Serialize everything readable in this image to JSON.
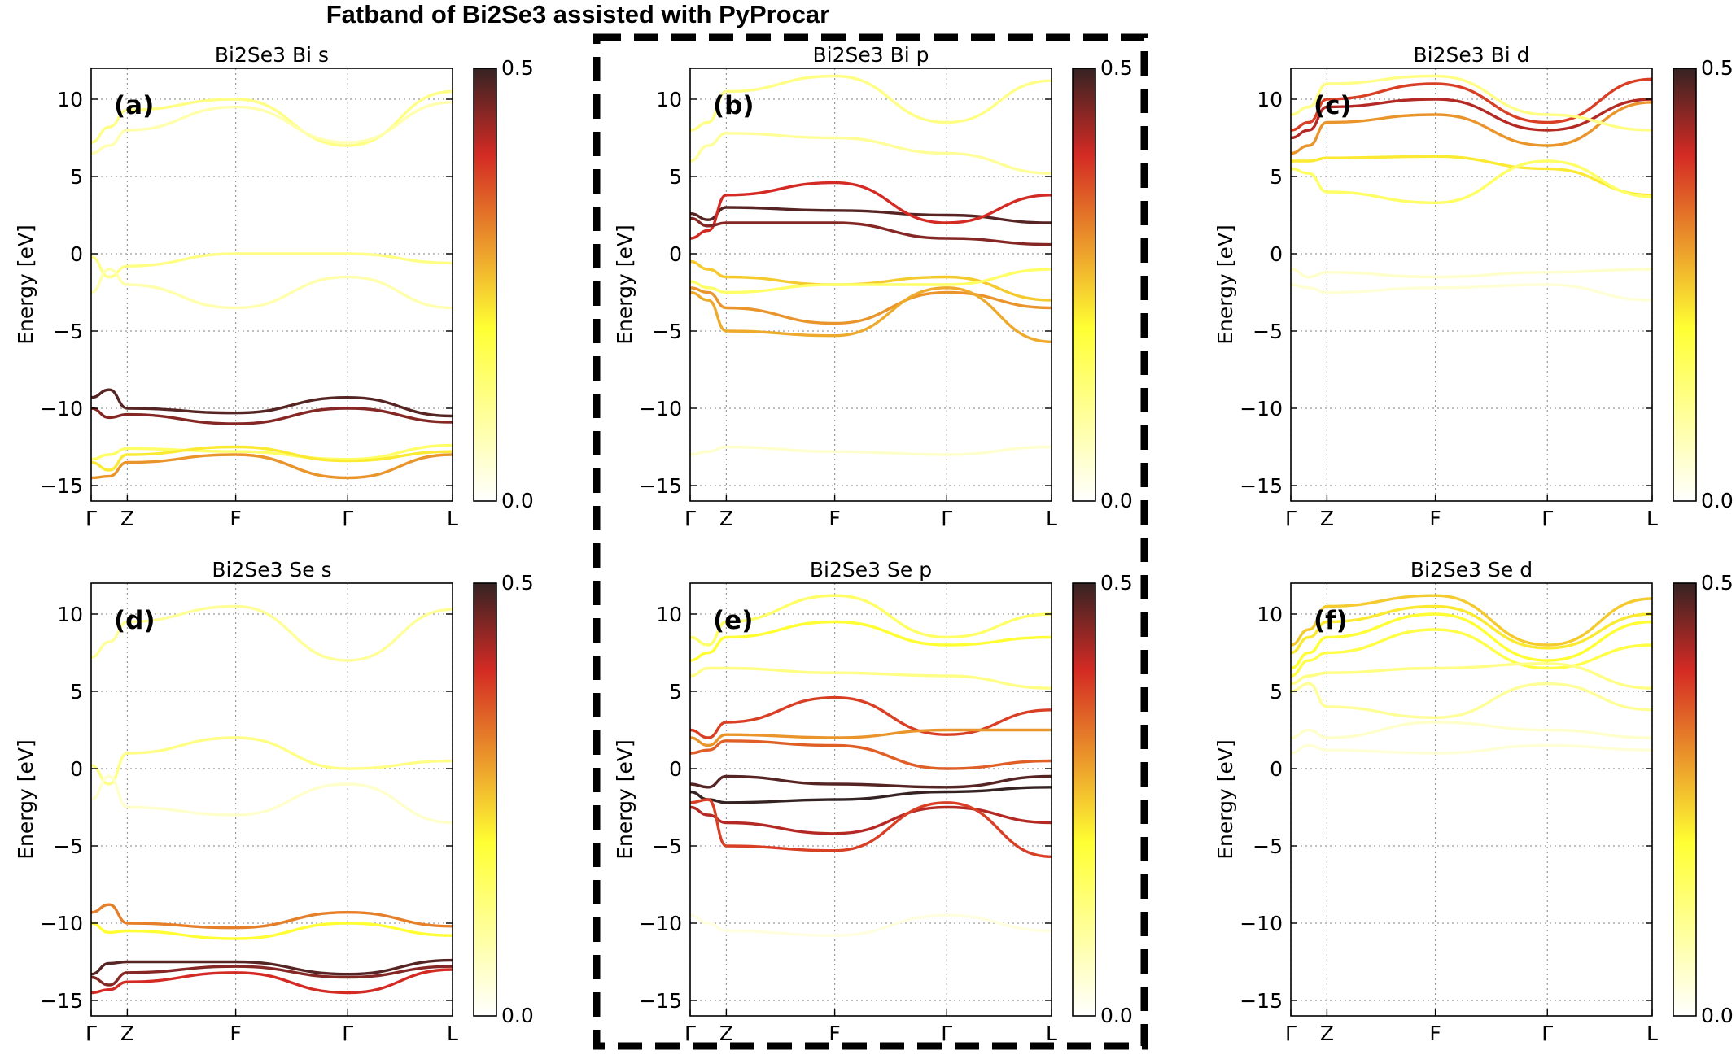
{
  "figure_title": "Fatband of Bi2Se3 assisted with PyProcar",
  "chart_data": {
    "type": "line",
    "ylabel": "Energy [eV]",
    "ylim": [
      -16,
      12
    ],
    "y_ticks": [
      10,
      5,
      0,
      -5,
      -10,
      -15
    ],
    "x_ticks": [
      {
        "label": "Γ",
        "pos": 0.0
      },
      {
        "label": "Z",
        "pos": 0.1
      },
      {
        "label": "F",
        "pos": 0.4
      },
      {
        "label": "Γ",
        "pos": 0.71
      },
      {
        "label": "L",
        "pos": 1.0
      }
    ],
    "colorbar": {
      "min": 0.0,
      "max": 0.5,
      "min_label": "0.0",
      "max_label": "0.5",
      "colormap": "hot_r"
    },
    "highlight_box_panels": [
      "b",
      "e"
    ],
    "panels": [
      {
        "id": "a",
        "label": "(a)",
        "title": "Bi2Se3 Bi s",
        "series": [
          {
            "y": [
              7.2,
              8.2,
              9.3,
              10.0,
              7.0,
              10.5
            ],
            "w": 0.12
          },
          {
            "y": [
              6.5,
              7.0,
              8.0,
              9.5,
              7.2,
              9.8
            ],
            "w": 0.08
          },
          {
            "y": [
              -0.2,
              -1.5,
              -0.8,
              0.0,
              0.0,
              -0.6
            ],
            "w": 0.12
          },
          {
            "y": [
              -2.5,
              -1.0,
              -2.0,
              -3.5,
              -1.5,
              -3.5
            ],
            "w": 0.08
          },
          {
            "y": [
              -9.3,
              -8.8,
              -10.0,
              -10.3,
              -9.3,
              -10.5
            ],
            "w": 0.48
          },
          {
            "y": [
              -10.0,
              -10.6,
              -10.4,
              -11.0,
              -10.0,
              -10.9
            ],
            "w": 0.45
          },
          {
            "y": [
              -13.3,
              -13.0,
              -12.6,
              -12.8,
              -13.3,
              -12.4
            ],
            "w": 0.15
          },
          {
            "y": [
              -13.5,
              -14.0,
              -13.0,
              -12.5,
              -13.4,
              -12.8
            ],
            "w": 0.22
          },
          {
            "y": [
              -14.5,
              -14.4,
              -13.5,
              -13.0,
              -14.5,
              -13.0
            ],
            "w": 0.3
          }
        ]
      },
      {
        "id": "b",
        "label": "(b)",
        "title": "Bi2Se3 Bi p",
        "series": [
          {
            "y": [
              8.0,
              8.5,
              10.5,
              11.5,
              8.5,
              11.2
            ],
            "w": 0.12
          },
          {
            "y": [
              6.0,
              7.0,
              7.8,
              7.5,
              6.5,
              5.2
            ],
            "w": 0.1
          },
          {
            "y": [
              2.6,
              2.2,
              3.0,
              2.8,
              2.5,
              2.0
            ],
            "w": 0.48
          },
          {
            "y": [
              1.0,
              1.5,
              3.8,
              4.6,
              2.0,
              3.8
            ],
            "w": 0.4
          },
          {
            "y": [
              2.3,
              1.8,
              2.0,
              2.0,
              1.0,
              0.6
            ],
            "w": 0.45
          },
          {
            "y": [
              -0.5,
              -1.0,
              -1.5,
              -2.0,
              -1.5,
              -3.0
            ],
            "w": 0.25
          },
          {
            "y": [
              -1.8,
              -2.2,
              -2.5,
              -2.0,
              -2.0,
              -1.0
            ],
            "w": 0.15
          },
          {
            "y": [
              -2.2,
              -2.5,
              -3.5,
              -4.5,
              -2.5,
              -3.5
            ],
            "w": 0.3
          },
          {
            "y": [
              -2.5,
              -3.0,
              -5.0,
              -5.3,
              -2.2,
              -5.7
            ],
            "w": 0.28
          },
          {
            "y": [
              -13.0,
              -12.8,
              -12.5,
              -12.8,
              -13.0,
              -12.5
            ],
            "w": 0.05
          }
        ]
      },
      {
        "id": "c",
        "label": "(c)",
        "title": "Bi2Se3 Bi d",
        "series": [
          {
            "y": [
              8.0,
              8.5,
              10.0,
              11.0,
              8.5,
              11.3
            ],
            "w": 0.38
          },
          {
            "y": [
              7.5,
              8.0,
              9.5,
              10.0,
              8.0,
              10.0
            ],
            "w": 0.42
          },
          {
            "y": [
              6.5,
              7.0,
              8.5,
              9.0,
              7.0,
              9.8
            ],
            "w": 0.3
          },
          {
            "y": [
              6.0,
              6.0,
              6.2,
              6.3,
              5.5,
              3.8
            ],
            "w": 0.22
          },
          {
            "y": [
              5.5,
              5.2,
              4.0,
              3.3,
              6.0,
              3.7
            ],
            "w": 0.15
          },
          {
            "y": [
              9.0,
              9.5,
              11.0,
              11.5,
              9.0,
              8.0
            ],
            "w": 0.12
          },
          {
            "y": [
              -1.0,
              -1.5,
              -1.2,
              -1.5,
              -1.2,
              -1.0
            ],
            "w": 0.05
          },
          {
            "y": [
              -2.0,
              -2.2,
              -2.5,
              -2.2,
              -2.0,
              -3.0
            ],
            "w": 0.04
          }
        ]
      },
      {
        "id": "d",
        "label": "(d)",
        "title": "Bi2Se3 Se s",
        "series": [
          {
            "y": [
              7.2,
              8.2,
              9.5,
              10.5,
              7.0,
              10.3
            ],
            "w": 0.1
          },
          {
            "y": [
              0.2,
              -1.0,
              1.0,
              2.0,
              0.0,
              0.5
            ],
            "w": 0.12
          },
          {
            "y": [
              -2.0,
              -0.5,
              -2.5,
              -3.0,
              -1.0,
              -3.5
            ],
            "w": 0.05
          },
          {
            "y": [
              -9.3,
              -8.8,
              -10.0,
              -10.3,
              -9.3,
              -10.2
            ],
            "w": 0.32
          },
          {
            "y": [
              -10.0,
              -10.6,
              -10.5,
              -11.0,
              -10.0,
              -10.8
            ],
            "w": 0.2
          },
          {
            "y": [
              -13.3,
              -12.6,
              -12.5,
              -12.5,
              -13.3,
              -12.4
            ],
            "w": 0.48
          },
          {
            "y": [
              -13.5,
              -14.0,
              -13.2,
              -12.8,
              -13.5,
              -12.8
            ],
            "w": 0.45
          },
          {
            "y": [
              -14.5,
              -14.3,
              -13.8,
              -13.2,
              -14.5,
              -13.0
            ],
            "w": 0.4
          }
        ]
      },
      {
        "id": "e",
        "label": "(e)",
        "title": "Bi2Se3 Se p",
        "series": [
          {
            "y": [
              8.5,
              8.0,
              9.5,
              11.2,
              8.5,
              10.0
            ],
            "w": 0.15
          },
          {
            "y": [
              7.0,
              7.5,
              8.5,
              9.5,
              8.0,
              8.5
            ],
            "w": 0.2
          },
          {
            "y": [
              6.0,
              6.5,
              6.5,
              6.2,
              6.0,
              5.2
            ],
            "w": 0.12
          },
          {
            "y": [
              2.5,
              2.0,
              3.0,
              4.6,
              2.2,
              3.8
            ],
            "w": 0.38
          },
          {
            "y": [
              2.0,
              1.5,
              2.2,
              2.0,
              2.5,
              2.5
            ],
            "w": 0.3
          },
          {
            "y": [
              1.0,
              1.2,
              1.8,
              1.5,
              0.0,
              0.5
            ],
            "w": 0.35
          },
          {
            "y": [
              -1.0,
              -1.2,
              -0.5,
              -1.0,
              -1.2,
              -0.5
            ],
            "w": 0.48
          },
          {
            "y": [
              -1.5,
              -2.0,
              -2.2,
              -2.0,
              -1.5,
              -1.2
            ],
            "w": 0.5
          },
          {
            "y": [
              -2.5,
              -3.0,
              -3.5,
              -4.2,
              -2.5,
              -3.5
            ],
            "w": 0.42
          },
          {
            "y": [
              -2.2,
              -2.0,
              -5.0,
              -5.3,
              -2.2,
              -5.7
            ],
            "w": 0.38
          },
          {
            "y": [
              -9.5,
              -10.0,
              -10.5,
              -10.8,
              -9.5,
              -10.5
            ],
            "w": 0.03
          }
        ]
      },
      {
        "id": "f",
        "label": "(f)",
        "title": "Bi2Se3 Se d",
        "series": [
          {
            "y": [
              8.0,
              9.0,
              10.5,
              11.2,
              8.0,
              11.0
            ],
            "w": 0.25
          },
          {
            "y": [
              7.5,
              8.5,
              9.5,
              10.5,
              7.8,
              10.0
            ],
            "w": 0.22
          },
          {
            "y": [
              6.5,
              7.5,
              8.5,
              10.0,
              7.0,
              9.5
            ],
            "w": 0.2
          },
          {
            "y": [
              6.0,
              7.0,
              7.5,
              9.0,
              6.5,
              8.0
            ],
            "w": 0.18
          },
          {
            "y": [
              5.5,
              6.0,
              6.2,
              6.5,
              6.8,
              5.2
            ],
            "w": 0.12
          },
          {
            "y": [
              5.0,
              5.5,
              4.0,
              3.3,
              5.5,
              3.8
            ],
            "w": 0.1
          },
          {
            "y": [
              2.0,
              2.5,
              2.0,
              3.0,
              2.5,
              2.0
            ],
            "w": 0.05
          },
          {
            "y": [
              1.0,
              1.5,
              1.2,
              1.0,
              1.5,
              1.2
            ],
            "w": 0.04
          }
        ]
      }
    ]
  }
}
